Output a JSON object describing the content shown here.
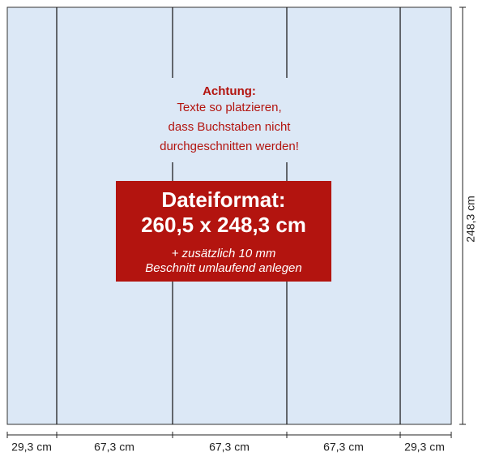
{
  "notice": {
    "heading": "Achtung:",
    "lines": [
      "Texte so platzieren,",
      "dass Buchstaben nicht",
      "durchgeschnitten werden!"
    ]
  },
  "format_box": {
    "title": "Dateiformat:",
    "size": "260,5 x 248,3 cm",
    "notes": [
      "+ zusätzlich 10 mm",
      "Beschnitt umlaufend anlegen"
    ]
  },
  "dimensions": {
    "height": "248,3 cm",
    "widths": [
      "29,3 cm",
      "67,3 cm",
      "67,3 cm",
      "67,3 cm",
      "29,3 cm"
    ]
  }
}
